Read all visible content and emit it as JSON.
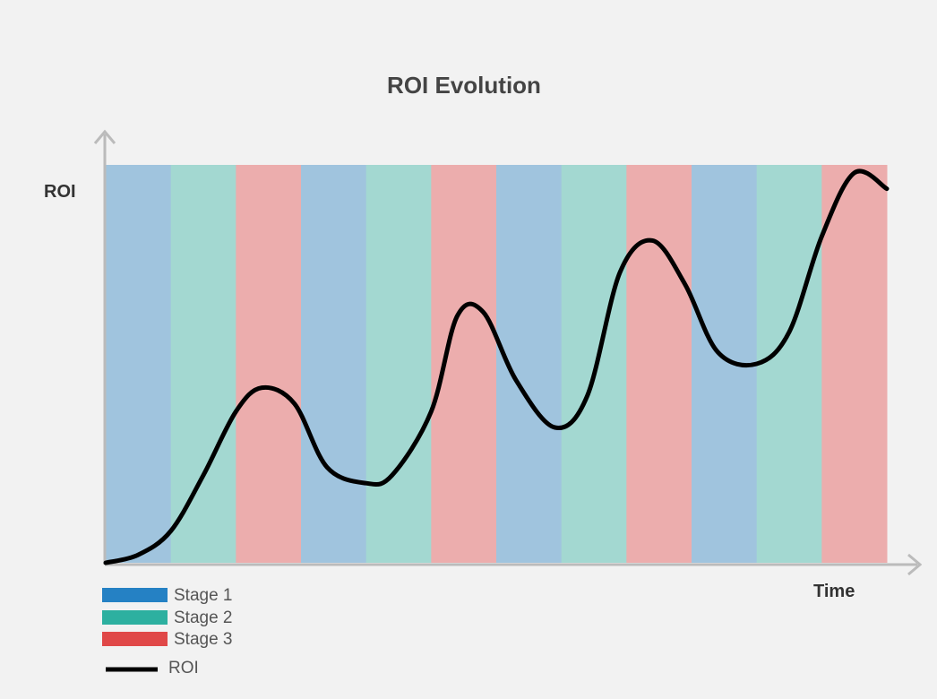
{
  "chart_data": {
    "type": "line",
    "title": "ROI Evolution",
    "xlabel": "Time",
    "ylabel": "ROI",
    "xlim": [
      0,
      12
    ],
    "ylim": [
      0,
      1
    ],
    "grid": false,
    "legend_position": "bottom-left",
    "background_bands": {
      "sequence": [
        "Stage 1",
        "Stage 2",
        "Stage 3",
        "Stage 1",
        "Stage 2",
        "Stage 3",
        "Stage 1",
        "Stage 2",
        "Stage 3",
        "Stage 1",
        "Stage 2",
        "Stage 3"
      ],
      "band_colors": {
        "Stage 1": "#a0c4de",
        "Stage 2": "#a3d8d1",
        "Stage 3": "#ecadad"
      }
    },
    "series": [
      {
        "name": "ROI",
        "color": "#000000",
        "points": [
          [
            0.0,
            0.0
          ],
          [
            0.5,
            0.02
          ],
          [
            1.0,
            0.08
          ],
          [
            1.5,
            0.22
          ],
          [
            2.0,
            0.38
          ],
          [
            2.4,
            0.44
          ],
          [
            2.9,
            0.4
          ],
          [
            3.4,
            0.24
          ],
          [
            4.0,
            0.2
          ],
          [
            4.4,
            0.22
          ],
          [
            5.0,
            0.38
          ],
          [
            5.4,
            0.62
          ],
          [
            5.8,
            0.63
          ],
          [
            6.3,
            0.46
          ],
          [
            6.9,
            0.34
          ],
          [
            7.4,
            0.42
          ],
          [
            7.9,
            0.73
          ],
          [
            8.4,
            0.81
          ],
          [
            8.9,
            0.7
          ],
          [
            9.4,
            0.53
          ],
          [
            10.0,
            0.5
          ],
          [
            10.5,
            0.58
          ],
          [
            11.0,
            0.82
          ],
          [
            11.5,
            0.98
          ],
          [
            12.0,
            0.94
          ]
        ]
      }
    ]
  },
  "legend": {
    "items": [
      {
        "label": "Stage 1",
        "color": "#2581c4",
        "kind": "swatch"
      },
      {
        "label": "Stage 2",
        "color": "#2db0a0",
        "kind": "swatch"
      },
      {
        "label": "Stage 3",
        "color": "#e04848",
        "kind": "swatch"
      },
      {
        "label": "ROI",
        "color": "#000000",
        "kind": "line"
      }
    ]
  },
  "colors": {
    "axis": "#bbbbbb",
    "page_background": "#f2f2f2"
  }
}
